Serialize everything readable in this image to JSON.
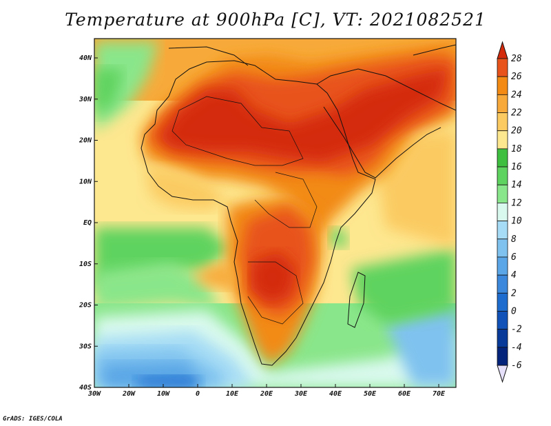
{
  "title": "Temperature at 900hPa [C], VT: 2021082521",
  "credit": "GrADS: IGES/COLA",
  "map": {
    "lon_labels": [
      "30W",
      "20W",
      "10W",
      "0",
      "10E",
      "20E",
      "30E",
      "40E",
      "50E",
      "60E",
      "70E"
    ],
    "lat_labels": [
      "40N",
      "30N",
      "20N",
      "10N",
      "EQ",
      "10S",
      "20S",
      "30S",
      "40S"
    ]
  },
  "colorbar": {
    "labels": [
      "28",
      "26",
      "24",
      "22",
      "20",
      "18",
      "16",
      "14",
      "12",
      "10",
      "8",
      "6",
      "4",
      "2",
      "0",
      "-2",
      "-4",
      "-6"
    ],
    "colors": [
      "#d42a0c",
      "#e8531c",
      "#f28a14",
      "#f7aa3a",
      "#fbcb62",
      "#fde78f",
      "#3fbf3f",
      "#5fd35f",
      "#8ae68a",
      "#d9f9ee",
      "#a6dcf5",
      "#7fc2ef",
      "#5aa6e6",
      "#3b88dc",
      "#1f6ccf",
      "#1052b8",
      "#083a9a",
      "#04237a"
    ]
  }
}
